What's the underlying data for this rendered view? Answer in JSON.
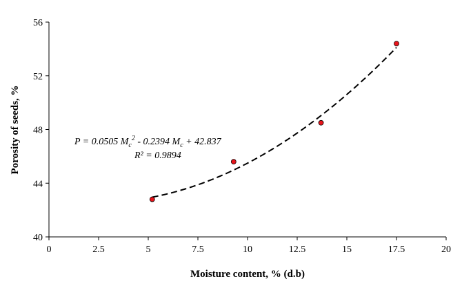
{
  "chart_data": {
    "type": "scatter",
    "title": "",
    "xlabel": "Moisture content, % (d.b)",
    "ylabel": "Porosity of seeds, %",
    "xlim": [
      0,
      20
    ],
    "ylim": [
      40,
      56
    ],
    "x_ticks": [
      "0",
      "2.5",
      "5",
      "7.5",
      "10",
      "12.5",
      "15",
      "17.5",
      "20"
    ],
    "y_ticks": [
      "40",
      "44",
      "48",
      "52",
      "56"
    ],
    "grid": false,
    "legend": "none",
    "series": [
      {
        "marker": "circle",
        "marker_color": "#e8141b",
        "points": [
          {
            "x": 5.2,
            "y": 42.8
          },
          {
            "x": 9.3,
            "y": 45.6
          },
          {
            "x": 13.7,
            "y": 48.5
          },
          {
            "x": 17.5,
            "y": 54.4
          }
        ]
      }
    ],
    "trendline": {
      "type": "polynomial",
      "order": 2,
      "style": "dashed",
      "color": "#000000",
      "coefficients": {
        "a": 0.0505,
        "b": -0.2394,
        "c": 42.837
      },
      "x_from": 5.2,
      "x_to": 17.5
    },
    "annotations": {
      "equation": {
        "prefix": "P = 0.0505 M",
        "sub1": "c",
        "sup": "2",
        "mid": " - 0.2394 M",
        "sub2": "c",
        "suffix": " + 42.837"
      },
      "r_squared": "R² = 0.9894"
    }
  }
}
